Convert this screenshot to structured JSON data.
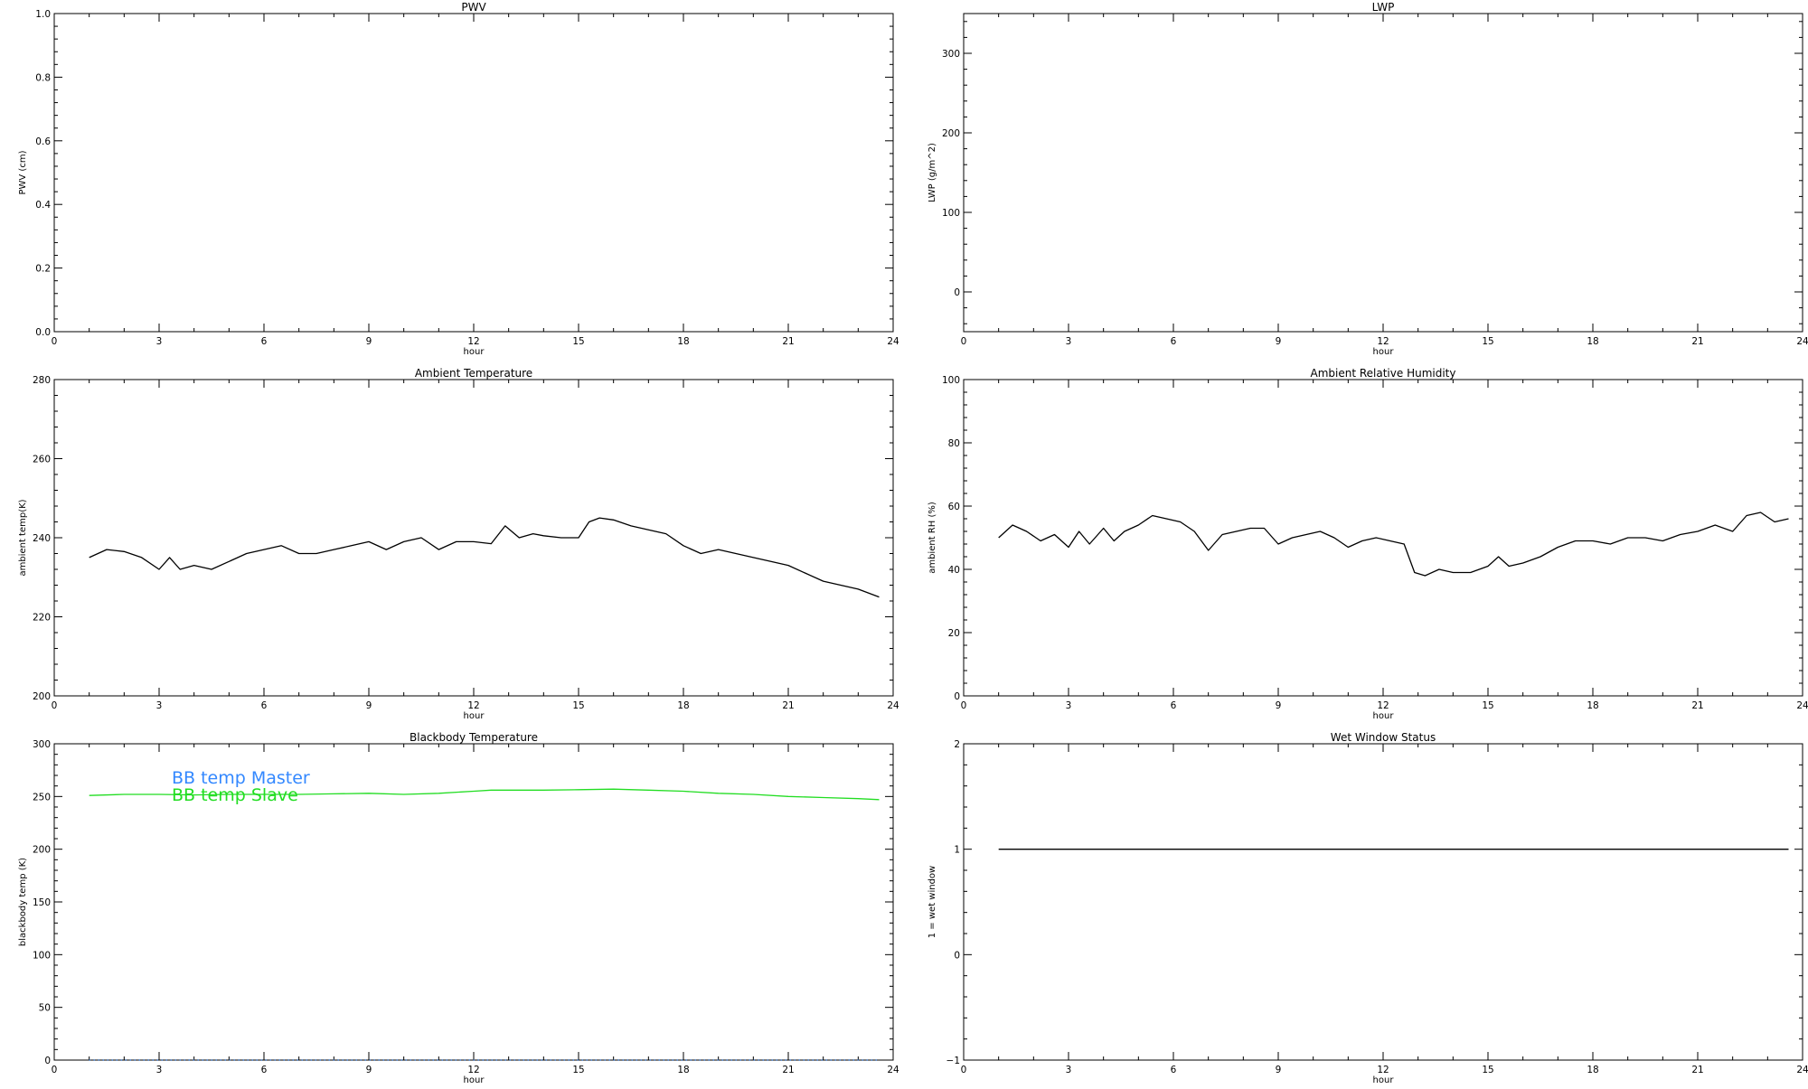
{
  "chart_data": [
    {
      "type": "line",
      "title": "PWV",
      "xlabel": "hour",
      "ylabel": "PWV (cm)",
      "xlim": [
        0,
        24
      ],
      "ylim": [
        0,
        1
      ],
      "xticks": [
        0,
        3,
        6,
        9,
        12,
        15,
        18,
        21,
        24
      ],
      "yticks": [
        "0.0",
        "0.2",
        "0.4",
        "0.6",
        "0.8",
        "1.0"
      ],
      "series": []
    },
    {
      "type": "line",
      "title": "LWP",
      "xlabel": "hour",
      "ylabel": "LWP (g/m^2)",
      "xlim": [
        0,
        24
      ],
      "ylim": [
        -50,
        350
      ],
      "xticks": [
        0,
        3,
        6,
        9,
        12,
        15,
        18,
        21,
        24
      ],
      "yticks": [
        "0",
        "100",
        "200",
        "300"
      ],
      "series": []
    },
    {
      "type": "line",
      "title": "Ambient Temperature",
      "xlabel": "hour",
      "ylabel": "ambient temp(K)",
      "xlim": [
        0,
        24
      ],
      "ylim": [
        200,
        280
      ],
      "xticks": [
        0,
        3,
        6,
        9,
        12,
        15,
        18,
        21,
        24
      ],
      "yticks": [
        "200",
        "220",
        "240",
        "260",
        "280"
      ],
      "series": [
        {
          "color": "#000000",
          "x": [
            1.0,
            1.5,
            2.0,
            2.5,
            3.0,
            3.3,
            3.6,
            4.0,
            4.5,
            5.0,
            5.5,
            6.0,
            6.5,
            7.0,
            7.5,
            8.0,
            8.5,
            9.0,
            9.5,
            10.0,
            10.5,
            11.0,
            11.5,
            12.0,
            12.5,
            12.9,
            13.3,
            13.7,
            14.0,
            14.5,
            15.0,
            15.3,
            15.6,
            16.0,
            16.5,
            17.0,
            17.5,
            18.0,
            18.5,
            19.0,
            19.5,
            20.0,
            20.5,
            21.0,
            21.5,
            22.0,
            22.5,
            23.0,
            23.6
          ],
          "y": [
            235,
            237,
            236.5,
            235,
            232,
            235,
            232,
            233,
            232,
            234,
            236,
            237,
            238,
            236,
            236,
            237,
            238,
            239,
            237,
            239,
            240,
            237,
            239,
            239,
            238.5,
            243,
            240,
            241,
            240.5,
            240,
            240,
            244,
            245,
            244.5,
            243,
            242,
            241,
            238,
            236,
            237,
            236,
            235,
            234,
            233,
            231,
            229,
            228,
            227,
            225
          ]
        }
      ]
    },
    {
      "type": "line",
      "title": "Ambient Relative Humidity",
      "xlabel": "hour",
      "ylabel": "ambient RH (%)",
      "xlim": [
        0,
        24
      ],
      "ylim": [
        0,
        100
      ],
      "xticks": [
        0,
        3,
        6,
        9,
        12,
        15,
        18,
        21,
        24
      ],
      "yticks": [
        "0",
        "20",
        "40",
        "60",
        "80",
        "100"
      ],
      "series": [
        {
          "color": "#000000",
          "x": [
            1.0,
            1.4,
            1.8,
            2.2,
            2.6,
            3.0,
            3.3,
            3.6,
            4.0,
            4.3,
            4.6,
            5.0,
            5.4,
            5.8,
            6.2,
            6.6,
            7.0,
            7.4,
            7.8,
            8.2,
            8.6,
            9.0,
            9.4,
            9.8,
            10.2,
            10.6,
            11.0,
            11.4,
            11.8,
            12.2,
            12.6,
            12.9,
            13.2,
            13.6,
            14.0,
            14.5,
            15.0,
            15.3,
            15.6,
            16.0,
            16.5,
            17.0,
            17.5,
            18.0,
            18.5,
            19.0,
            19.5,
            20.0,
            20.5,
            21.0,
            21.5,
            22.0,
            22.4,
            22.8,
            23.2,
            23.6
          ],
          "y": [
            50,
            54,
            52,
            49,
            51,
            47,
            52,
            48,
            53,
            49,
            52,
            54,
            57,
            56,
            55,
            52,
            46,
            51,
            52,
            53,
            53,
            48,
            50,
            51,
            52,
            50,
            47,
            49,
            50,
            49,
            48,
            39,
            38,
            40,
            39,
            39,
            41,
            44,
            41,
            42,
            44,
            47,
            49,
            49,
            48,
            50,
            50,
            49,
            51,
            52,
            54,
            52,
            57,
            58,
            55,
            56
          ]
        }
      ]
    },
    {
      "type": "line",
      "title": "Blackbody Temperature",
      "xlabel": "hour",
      "ylabel": "blackbody temp (K)",
      "xlim": [
        0,
        24
      ],
      "ylim": [
        0,
        300
      ],
      "xticks": [
        0,
        3,
        6,
        9,
        12,
        15,
        18,
        21,
        24
      ],
      "yticks": [
        "0",
        "50",
        "100",
        "150",
        "200",
        "250",
        "300"
      ],
      "legend": [
        "BB temp Master",
        "BB temp Slave"
      ],
      "series": [
        {
          "name": "BB temp Master",
          "color": "#3388ff",
          "x": [
            1.0,
            6.0,
            12.0,
            18.0,
            23.6
          ],
          "y": [
            0,
            0,
            0,
            0,
            0
          ]
        },
        {
          "name": "BB temp Slave",
          "color": "#22dd22",
          "x": [
            1.0,
            2.0,
            3.0,
            4.0,
            5.0,
            6.0,
            7.0,
            8.0,
            9.0,
            10.0,
            11.0,
            12.0,
            12.5,
            13.0,
            14.0,
            15.0,
            16.0,
            17.0,
            18.0,
            19.0,
            20.0,
            21.0,
            22.0,
            23.0,
            23.6
          ],
          "y": [
            251,
            252,
            252,
            251.5,
            252,
            252,
            252,
            252.5,
            253,
            252,
            253,
            255,
            256,
            256,
            256,
            256.5,
            257,
            256,
            255,
            253,
            252,
            250,
            249,
            248,
            247
          ]
        }
      ]
    },
    {
      "type": "line",
      "title": "Wet Window Status",
      "xlabel": "hour",
      "ylabel": "1 = wet window",
      "xlim": [
        0,
        24
      ],
      "ylim": [
        -1,
        2
      ],
      "xticks": [
        0,
        3,
        6,
        9,
        12,
        15,
        18,
        21,
        24
      ],
      "yticks": [
        "−1",
        "0",
        "1",
        "2"
      ],
      "series": [
        {
          "color": "#000000",
          "x": [
            1.0,
            23.6
          ],
          "y": [
            1,
            1
          ]
        }
      ]
    }
  ]
}
